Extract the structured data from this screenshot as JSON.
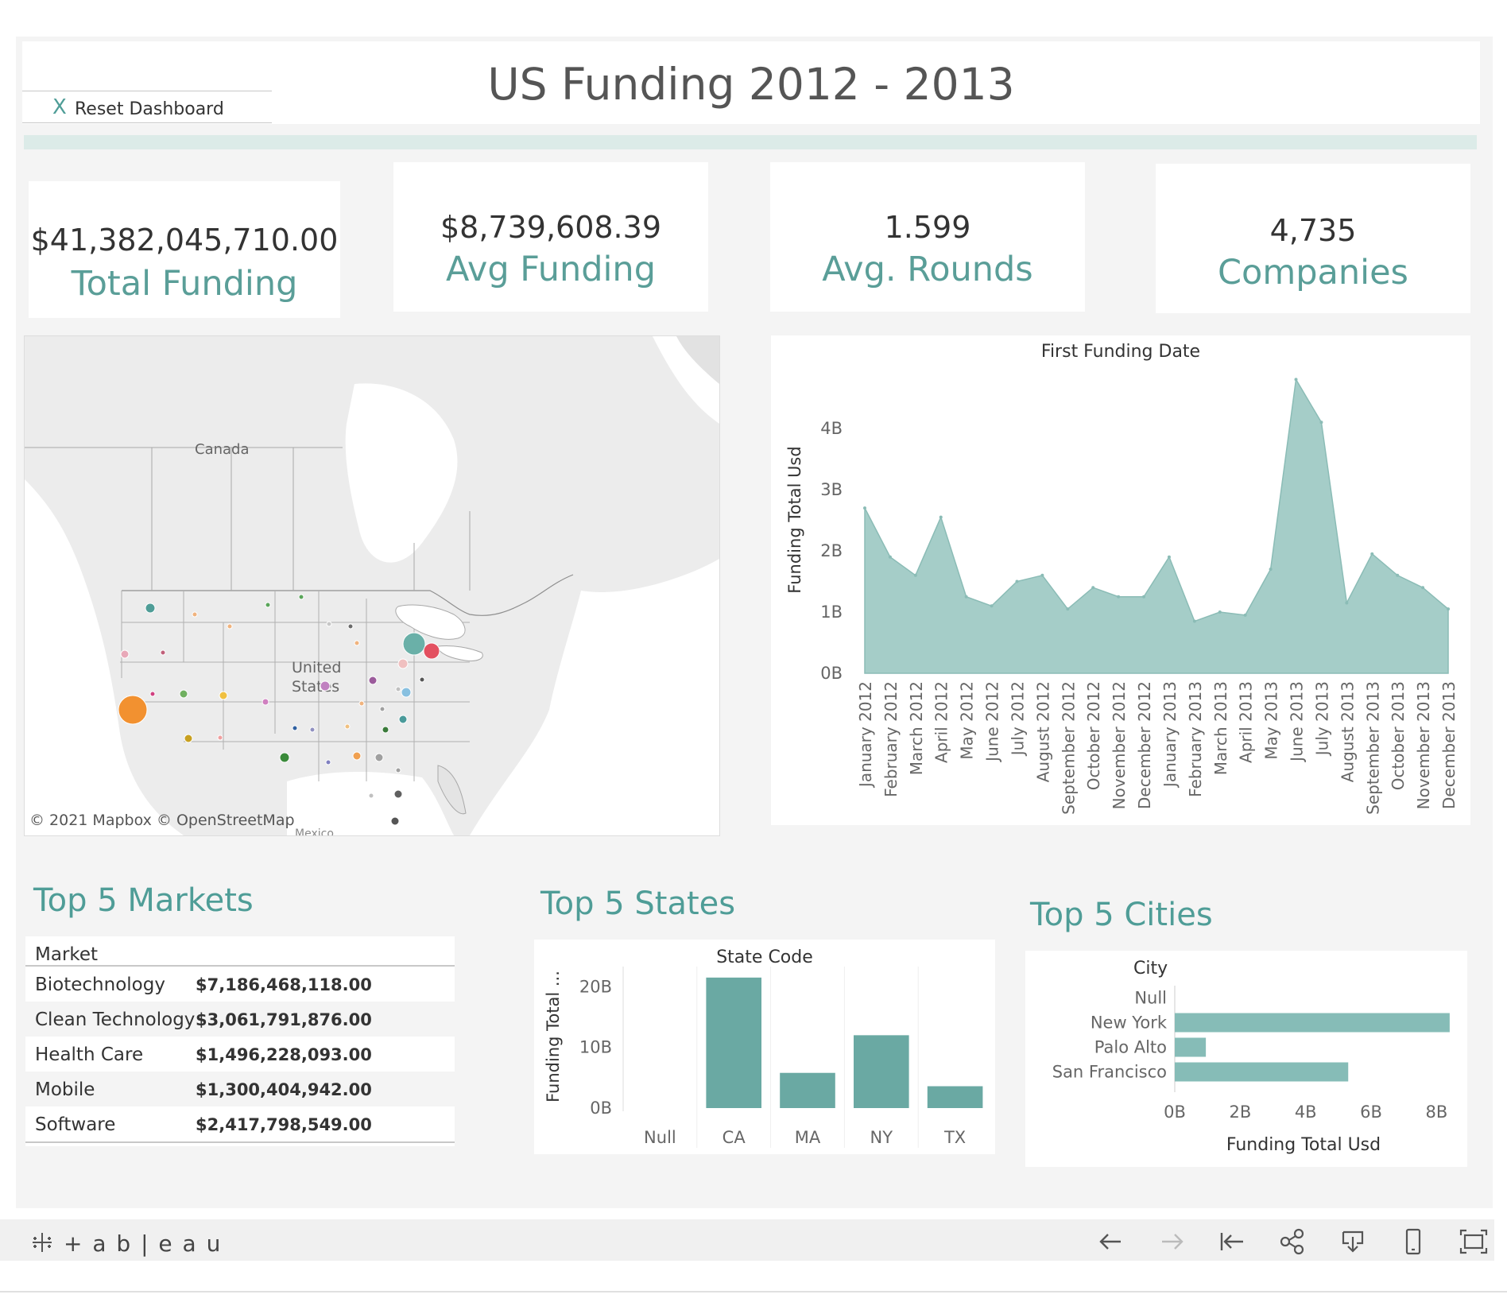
{
  "dashboard": {
    "title": "US Funding 2012 - 2013",
    "reset_icon": "X",
    "reset_label": "Reset Dashboard"
  },
  "kpis": [
    {
      "value": "$41,382,045,710.00",
      "label": "Total Funding"
    },
    {
      "value": "$8,739,608.39",
      "label": "Avg Funding"
    },
    {
      "value": "1.599",
      "label": "Avg. Rounds"
    },
    {
      "value": "4,735",
      "label": "Companies"
    }
  ],
  "map": {
    "labels": {
      "canada": "Canada",
      "us_line1": "United",
      "us_line2": "States",
      "mexico": "Mexico"
    },
    "attribution": "© 2021 Mapbox © OpenStreetMap"
  },
  "chart_data": [
    {
      "type": "area",
      "title": "First Funding Date",
      "ylabel": "Funding Total Usd",
      "ylim": [
        0,
        5.0
      ],
      "yticks": [
        "0B",
        "1B",
        "2B",
        "3B",
        "4B"
      ],
      "x": [
        "January 2012",
        "February 2012",
        "March 2012",
        "April 2012",
        "May 2012",
        "June 2012",
        "July 2012",
        "August 2012",
        "September 2012",
        "October 2012",
        "November 2012",
        "December 2012",
        "January 2013",
        "February 2013",
        "March 2013",
        "April 2013",
        "May 2013",
        "June 2013",
        "July 2013",
        "August 2013",
        "September 2013",
        "October 2013",
        "November 2013",
        "December 2013"
      ],
      "values": [
        2.7,
        1.9,
        1.6,
        2.55,
        1.25,
        1.1,
        1.5,
        1.6,
        1.05,
        1.4,
        1.25,
        1.25,
        1.9,
        0.85,
        1.0,
        0.95,
        1.7,
        4.8,
        4.1,
        1.15,
        1.95,
        1.6,
        1.4,
        1.05
      ],
      "color": "#a5cdc8"
    },
    {
      "type": "table",
      "title": "Top 5 Markets",
      "columns": [
        "Market",
        ""
      ],
      "rows": [
        [
          "Biotechnology",
          "$7,186,468,118.00"
        ],
        [
          "Clean Technology",
          "$3,061,791,876.00"
        ],
        [
          "Health Care",
          "$1,496,228,093.00"
        ],
        [
          "Mobile",
          "$1,300,404,942.00"
        ],
        [
          "Software",
          "$2,417,798,549.00"
        ]
      ]
    },
    {
      "type": "bar",
      "title": "Top 5 States",
      "subtitle": "State Code",
      "ylabel": "Funding Total ...",
      "ylim": [
        0,
        22
      ],
      "yticks": [
        "0B",
        "10B",
        "20B"
      ],
      "categories": [
        "Null",
        "CA",
        "MA",
        "NY",
        "TX"
      ],
      "values": [
        0,
        21.5,
        5.8,
        12.0,
        3.6
      ],
      "color": "#6aa9a3"
    },
    {
      "type": "bar",
      "orientation": "horizontal",
      "title": "Top 5 Cities",
      "subtitle": "City",
      "xlabel": "Funding Total Usd",
      "xlim": [
        0,
        8.5
      ],
      "xticks": [
        "0B",
        "2B",
        "4B",
        "6B",
        "8B"
      ],
      "categories": [
        "Null",
        "New York",
        "Palo Alto",
        "San Francisco"
      ],
      "values": [
        0,
        8.4,
        0.95,
        5.3
      ],
      "color": "#86bcb7"
    }
  ],
  "footer": {
    "brand": "+ a b | e a u",
    "icons": [
      "back-icon",
      "forward-icon",
      "revert-icon",
      "share-icon",
      "download-icon",
      "device-preview-icon",
      "fullscreen-icon"
    ]
  }
}
